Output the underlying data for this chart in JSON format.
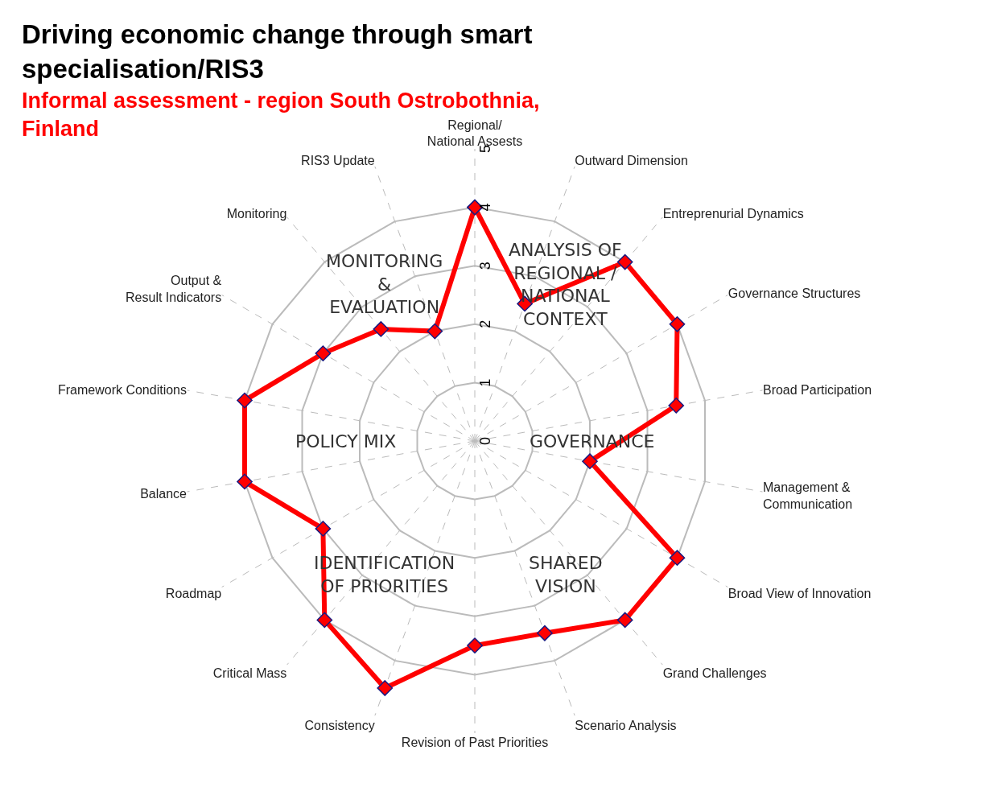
{
  "chart_data": {
    "type": "radar",
    "title": "Driving economic change through smart specialisation/RIS3",
    "subtitle": "Informal assessment - region South Ostrobothnia, Finland",
    "categories": [
      "Regional/National Assests",
      "Outward Dimension",
      "Entreprenurial Dynamics",
      "Governance Structures",
      "Broad Participation",
      "Management & Communication",
      "Broad View of Innovation",
      "Grand Challenges",
      "Scenario Analysis",
      "Revision of Past Priorities",
      "Consistency",
      "Critical Mass",
      "Roadmap",
      "Balance",
      "Framework Conditions",
      "Output & Result Indicators",
      "Monitoring",
      "RIS3 Update"
    ],
    "series": [
      {
        "color": "#ff0000",
        "values": [
          4,
          2.5,
          4,
          4,
          3.5,
          2,
          4,
          4,
          3.5,
          3.5,
          4.5,
          4,
          3,
          4,
          4,
          3,
          2.5,
          2
        ]
      }
    ],
    "ylim": [
      0,
      5
    ],
    "yticks": [
      0,
      1,
      2,
      3,
      4,
      5
    ],
    "grid": true,
    "marker": "diamond",
    "line_style": "solid",
    "annotations": [
      "ANALYSIS OF\nREGIONAL /\nNATIONAL\nCONTEXT",
      "GOVERNANCE",
      "SHARED\nVISION",
      "IDENTIFICATION\nOF PRIORITIES",
      "POLICY MIX",
      "MONITORING\n&\nEVALUATION"
    ]
  }
}
